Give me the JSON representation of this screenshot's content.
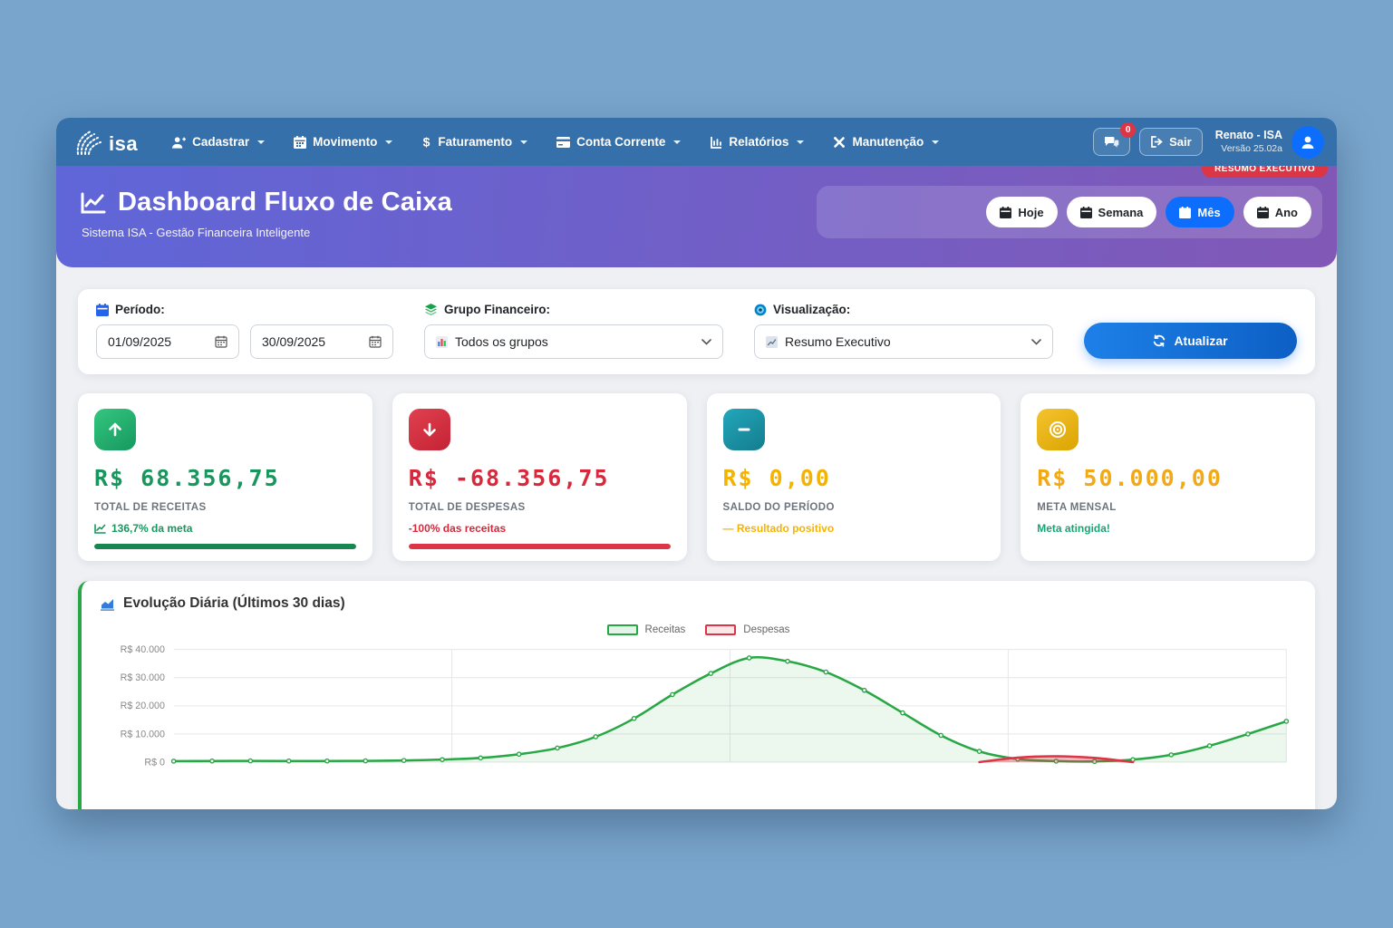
{
  "navbar": {
    "logo_text": "isa",
    "items": [
      {
        "label": "Cadastrar",
        "icon": "person-plus-icon"
      },
      {
        "label": "Movimento",
        "icon": "calendar-icon"
      },
      {
        "label": "Faturamento",
        "icon": "dollar-icon"
      },
      {
        "label": "Conta Corrente",
        "icon": "credit-card-icon"
      },
      {
        "label": "Relatórios",
        "icon": "report-chart-icon"
      },
      {
        "label": "Manutenção",
        "icon": "tools-icon"
      }
    ],
    "messages_badge": "0",
    "logout_label": "Sair",
    "user_name": "Renato - ISA",
    "version": "Versão 25.02a"
  },
  "header": {
    "title": "Dashboard Fluxo de Caixa",
    "subtitle": "Sistema ISA - Gestão Financeira Inteligente",
    "badge": "RESUMO EXECUTIVO",
    "period_buttons": [
      {
        "label": "Hoje",
        "active": false
      },
      {
        "label": "Semana",
        "active": false
      },
      {
        "label": "Mês",
        "active": true
      },
      {
        "label": "Ano",
        "active": false
      }
    ]
  },
  "filters": {
    "period_label": "Período:",
    "date_from": "01/09/2025",
    "date_to": "30/09/2025",
    "group_label": "Grupo Financeiro:",
    "group_value": "Todos os grupos",
    "view_label": "Visualização:",
    "view_value": "Resumo Executivo",
    "refresh_label": "Atualizar"
  },
  "stats": [
    {
      "value": "R$ 68.356,75",
      "label": "TOTAL DE RECEITAS",
      "status": "136,7% da meta",
      "progress": 100
    },
    {
      "value": "R$ -68.356,75",
      "label": "TOTAL DE DESPESAS",
      "status": "-100% das receitas",
      "progress": 100
    },
    {
      "value": "R$ 0,00",
      "label": "SALDO DO PERÍODO",
      "status": "— Resultado positivo"
    },
    {
      "value": "R$ 50.000,00",
      "label": "META MENSAL",
      "status": "Meta atingida!"
    }
  ],
  "colors": {
    "navbar_blue": "#3570aa",
    "header_gradient_start": "#5f66d8",
    "header_gradient_end": "#8158b6",
    "accent_blue": "#0d6efd",
    "green": "#28a745",
    "red": "#dc3545",
    "teal": "#1798a5",
    "gold": "#f0b411",
    "amber_text": "#f5b301"
  },
  "chart_data": {
    "type": "line",
    "title": "Evolução Diária (Últimos 30 dias)",
    "xlabel": "",
    "ylabel": "R$",
    "ylim": [
      0,
      40000
    ],
    "grid": true,
    "legend_position": "top-center",
    "x_tick_labels_visible": false,
    "y_ticks": [
      {
        "label": "R$ 40.000",
        "value": 40000
      },
      {
        "label": "R$ 30.000",
        "value": 30000
      },
      {
        "label": "R$ 20.000",
        "value": 20000
      },
      {
        "label": "R$ 10.000",
        "value": 10000
      },
      {
        "label": "R$ 0",
        "value": 0
      }
    ],
    "series": [
      {
        "name": "Receitas",
        "color": "#28a745",
        "fill": "rgba(40,167,69,0.09)",
        "values": [
          350,
          400,
          450,
          420,
          400,
          450,
          600,
          900,
          1500,
          2800,
          5000,
          9000,
          15500,
          24000,
          31500,
          37000,
          35800,
          32000,
          25500,
          17500,
          9500,
          3800,
          1100,
          350,
          250,
          900,
          2600,
          5800,
          10000,
          14500
        ]
      },
      {
        "name": "Despesas",
        "color": "#dc3545",
        "fill": "rgba(220,53,69,0.35)",
        "values": [
          null,
          null,
          null,
          null,
          null,
          null,
          null,
          null,
          null,
          null,
          null,
          null,
          null,
          null,
          null,
          null,
          null,
          null,
          null,
          null,
          null,
          0,
          1600,
          2100,
          1500,
          0,
          null,
          null,
          null,
          null
        ]
      }
    ]
  }
}
